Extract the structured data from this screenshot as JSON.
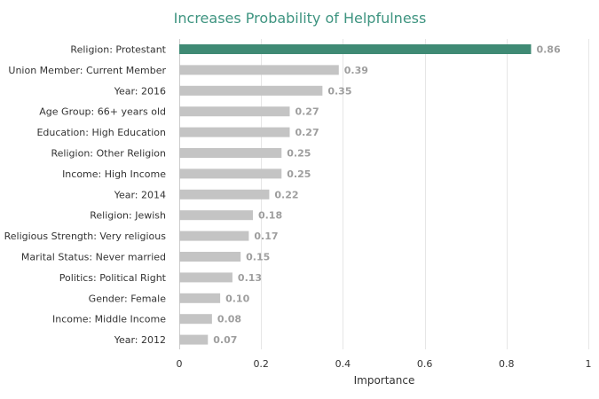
{
  "chart_data": {
    "type": "bar",
    "orientation": "horizontal",
    "title": "Increases Probability of Helpfulness",
    "xlabel": "Importance",
    "ylabel": "",
    "xlim": [
      0,
      1
    ],
    "xticks": [
      "0",
      "0.2",
      "0.4",
      "0.6",
      "0.8",
      "1"
    ],
    "xtick_values": [
      0,
      0.2,
      0.4,
      0.6,
      0.8,
      1
    ],
    "grid": true,
    "categories": [
      "Religion: Protestant",
      "Union Member: Current Member",
      "Year: 2016",
      "Age Group: 66+ years old",
      "Education: High Education",
      "Religion: Other Religion",
      "Income: High Income",
      "Year: 2014",
      "Religion: Jewish",
      "Religious Strength: Very religious",
      "Marital Status: Never married",
      "Politics: Political Right",
      "Gender: Female",
      "Income: Middle Income",
      "Year: 2012"
    ],
    "values": [
      0.86,
      0.39,
      0.35,
      0.27,
      0.27,
      0.25,
      0.25,
      0.22,
      0.18,
      0.17,
      0.15,
      0.13,
      0.1,
      0.08,
      0.07
    ],
    "value_labels": [
      "0.86",
      "0.39",
      "0.35",
      "0.27",
      "0.27",
      "0.25",
      "0.25",
      "0.22",
      "0.18",
      "0.17",
      "0.15",
      "0.13",
      "0.10",
      "0.08",
      "0.07"
    ],
    "colors": {
      "highlight": "#3f8a74",
      "default": "#c4c4c4",
      "title": "#3e9480"
    },
    "highlight_index": 0
  }
}
